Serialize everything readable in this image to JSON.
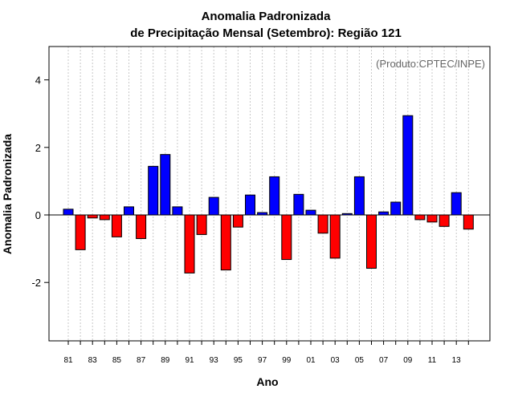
{
  "chart_data": {
    "type": "bar",
    "title_line1": "Anomalia Padronizada",
    "title_line2": "de Precipitação Mensal (Setembro): Região 121",
    "annotation": "(Produto:CPTEC/INPE)",
    "xlabel": "Ano",
    "ylabel": "Anomalia Padronizada",
    "ylim": [
      -3.8,
      4.9
    ],
    "yticks": [
      -2,
      0,
      2,
      4
    ],
    "categories": [
      "81",
      "82",
      "83",
      "84",
      "85",
      "86",
      "87",
      "88",
      "89",
      "90",
      "91",
      "92",
      "93",
      "94",
      "95",
      "96",
      "97",
      "98",
      "99",
      "00",
      "01",
      "02",
      "03",
      "04",
      "05",
      "06",
      "07",
      "08",
      "09",
      "10",
      "11",
      "12",
      "13",
      "14"
    ],
    "xtick_labels": [
      "81",
      "83",
      "85",
      "87",
      "89",
      "91",
      "93",
      "95",
      "97",
      "99",
      "01",
      "03",
      "05",
      "07",
      "09",
      "11",
      "13"
    ],
    "values": [
      0.17,
      -1.03,
      -0.09,
      -0.14,
      -0.65,
      0.24,
      -0.7,
      1.44,
      1.79,
      0.24,
      -1.72,
      -0.58,
      0.52,
      -1.63,
      -0.36,
      0.59,
      0.07,
      1.13,
      -1.32,
      0.61,
      0.14,
      -0.54,
      -1.28,
      0.04,
      1.13,
      -1.58,
      0.09,
      0.38,
      2.94,
      -0.14,
      -0.21,
      -0.34,
      0.66,
      -0.42
    ],
    "colors": {
      "positive": "#0000ff",
      "negative": "#ff0000",
      "grid": "#c8c8c8",
      "annotation": "#666666"
    },
    "grid": true,
    "zero_line": true
  }
}
